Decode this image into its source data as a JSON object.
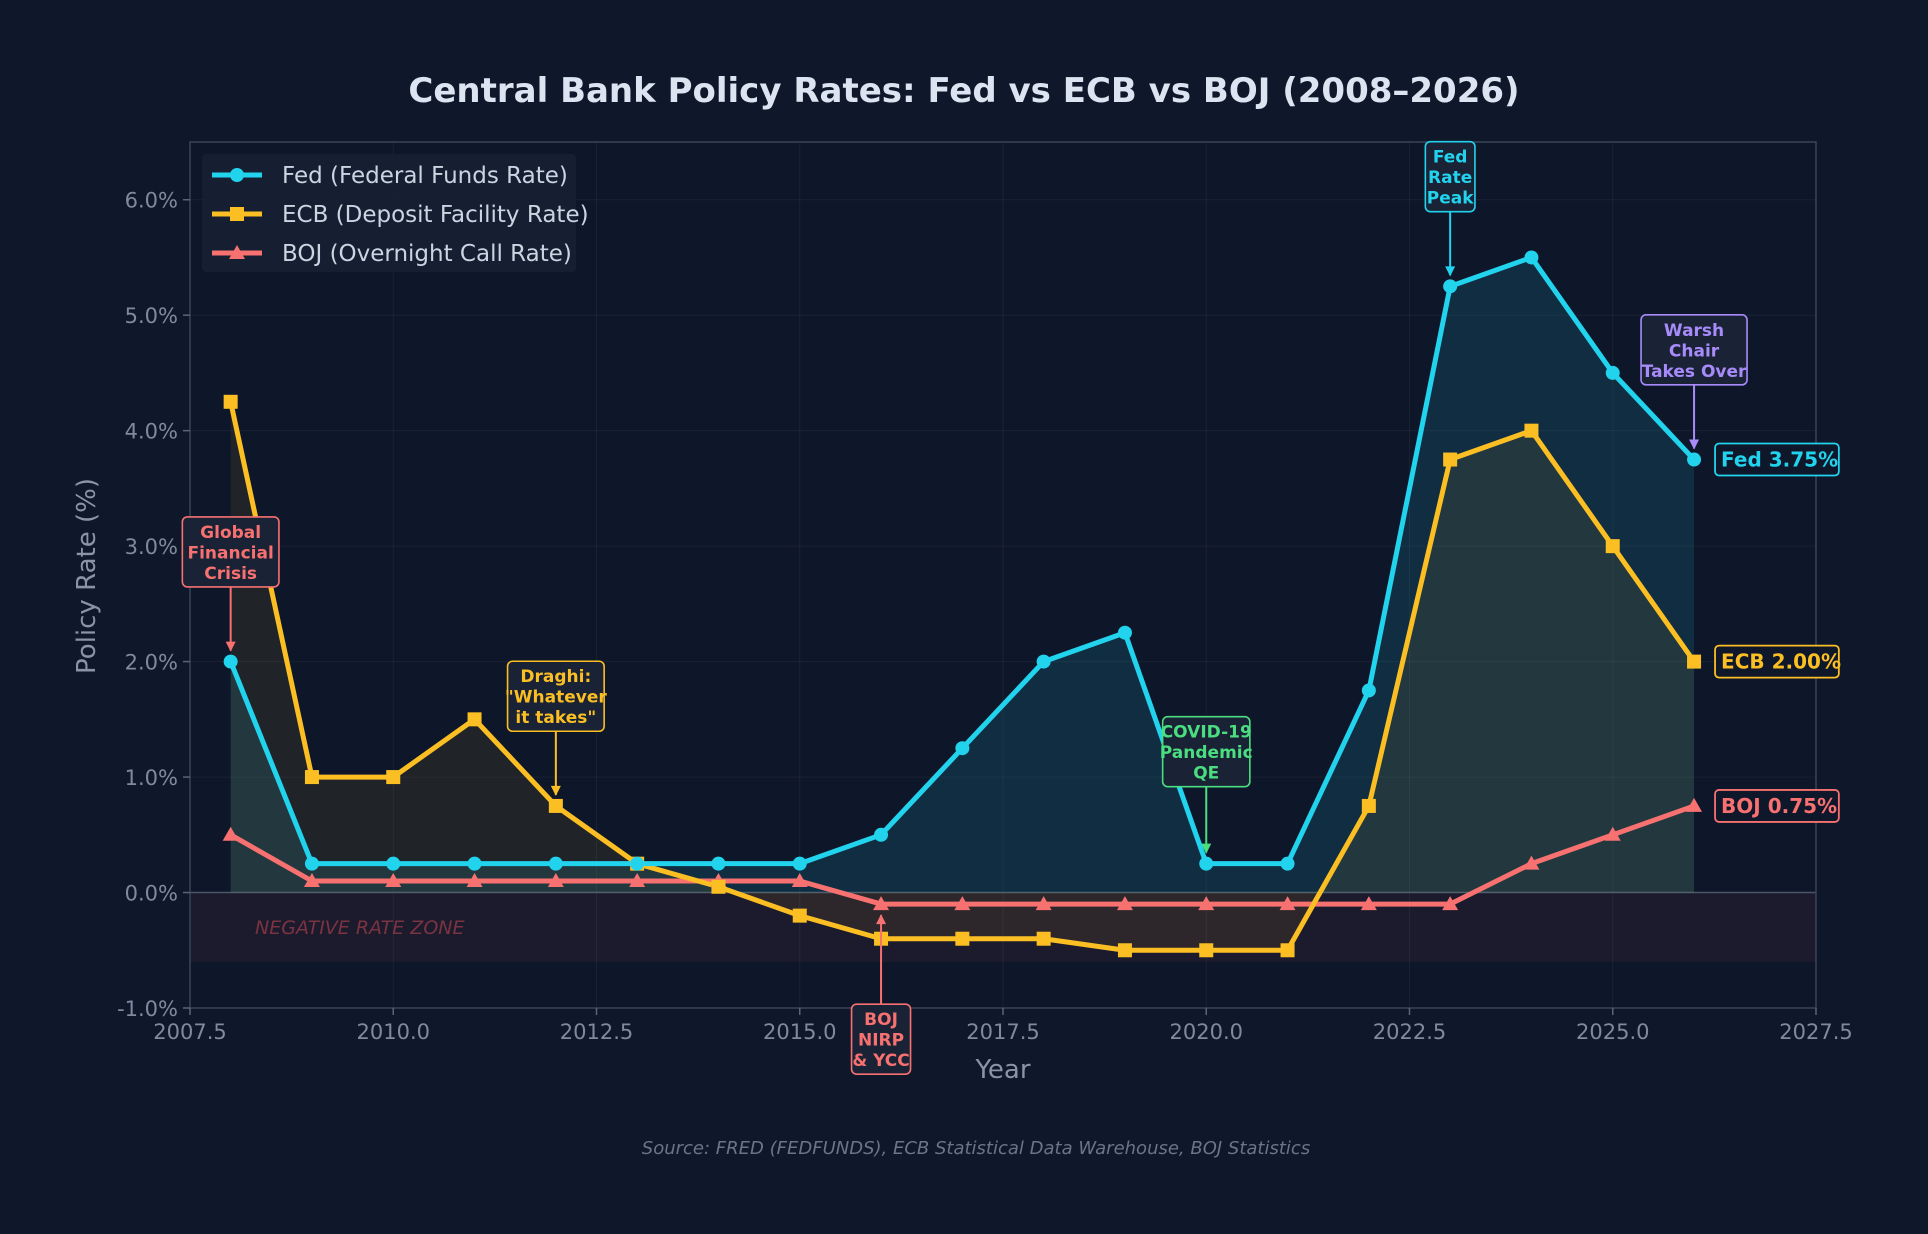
{
  "colors": {
    "background": "#0f172a",
    "fed": "#22d3ee",
    "ecb": "#fbbf24",
    "boj": "#f87171",
    "green": "#4ade80",
    "purple": "#a78bfa",
    "zone": "#f87171"
  },
  "chart_data": {
    "type": "line",
    "title": "Central Bank Policy Rates: Fed vs ECB vs BOJ (2008–2026)",
    "xlabel": "Year",
    "ylabel": "Policy Rate (%)",
    "xlim": [
      2007.5,
      2027.5
    ],
    "ylim": [
      -1.0,
      6.5
    ],
    "x_ticks": [
      2007.5,
      2010.0,
      2012.5,
      2015.0,
      2017.5,
      2020.0,
      2022.5,
      2025.0,
      2027.5
    ],
    "x_tick_labels": [
      "2007.5",
      "2010.0",
      "2012.5",
      "2015.0",
      "2017.5",
      "2020.0",
      "2022.5",
      "2025.0",
      "2027.5"
    ],
    "y_ticks": [
      -1,
      0,
      1,
      2,
      3,
      4,
      5,
      6
    ],
    "y_tick_labels": [
      "-1.0%",
      "0.0%",
      "1.0%",
      "2.0%",
      "3.0%",
      "4.0%",
      "5.0%",
      "6.0%"
    ],
    "grid": true,
    "legend_position": "top-left",
    "x": [
      2008,
      2009,
      2010,
      2011,
      2012,
      2013,
      2014,
      2015,
      2016,
      2017,
      2018,
      2019,
      2020,
      2021,
      2022,
      2023,
      2024,
      2025,
      2026
    ],
    "series": [
      {
        "name": "Fed (Federal Funds Rate)",
        "key": "fed",
        "marker": "circle",
        "values": [
          2.0,
          0.25,
          0.25,
          0.25,
          0.25,
          0.25,
          0.25,
          0.25,
          0.5,
          1.25,
          2.0,
          2.25,
          0.25,
          0.25,
          1.75,
          5.25,
          5.5,
          4.5,
          3.75
        ],
        "end_label": "Fed 3.75%"
      },
      {
        "name": "ECB (Deposit Facility Rate)",
        "key": "ecb",
        "marker": "square",
        "values": [
          4.25,
          1.0,
          1.0,
          1.5,
          0.75,
          0.25,
          0.05,
          -0.2,
          -0.4,
          -0.4,
          -0.4,
          -0.5,
          -0.5,
          -0.5,
          0.75,
          3.75,
          4.0,
          3.0,
          2.0
        ],
        "end_label": "ECB 2.00%"
      },
      {
        "name": "BOJ (Overnight Call Rate)",
        "key": "boj",
        "marker": "triangle",
        "values": [
          0.5,
          0.1,
          0.1,
          0.1,
          0.1,
          0.1,
          0.1,
          0.1,
          -0.1,
          -0.1,
          -0.1,
          -0.1,
          -0.1,
          -0.1,
          -0.1,
          -0.1,
          0.25,
          0.5,
          0.75
        ],
        "end_label": "BOJ 0.75%"
      }
    ],
    "negative_zone": {
      "label": "NEGATIVE RATE ZONE",
      "y_range": [
        -0.6,
        0
      ]
    },
    "annotations": [
      {
        "lines": [
          "Global",
          "Financial",
          "Crisis"
        ],
        "x": 2008,
        "y": 2.0,
        "color_key": "boj",
        "box_x": 2008.0,
        "box_y": 2.95,
        "dir": "down"
      },
      {
        "lines": [
          "Draghi:",
          "\"Whatever",
          "it takes\""
        ],
        "x": 2012,
        "y": 0.75,
        "color_key": "ecb",
        "box_x": 2012.0,
        "box_y": 1.7,
        "dir": "down"
      },
      {
        "lines": [
          "BOJ",
          "NIRP",
          "& YCC"
        ],
        "x": 2016,
        "y": -0.1,
        "color_key": "boj",
        "box_x": 2016.0,
        "box_y": -1.27,
        "dir": "up"
      },
      {
        "lines": [
          "COVID-19",
          "Pandemic",
          "QE"
        ],
        "x": 2020,
        "y": 0.25,
        "color_key": "green",
        "box_x": 2020.0,
        "box_y": 1.22,
        "dir": "down"
      },
      {
        "lines": [
          "Fed",
          "Rate",
          "Peak"
        ],
        "x": 2023,
        "y": 5.25,
        "color_key": "fed",
        "box_x": 2023.0,
        "box_y": 6.2,
        "dir": "down"
      },
      {
        "lines": [
          "Warsh",
          "Chair",
          "Takes Over"
        ],
        "x": 2026,
        "y": 3.75,
        "color_key": "purple",
        "box_x": 2026.0,
        "box_y": 4.7,
        "dir": "down"
      }
    ]
  },
  "source": "Source: FRED (FEDFUNDS), ECB Statistical Data Warehouse, BOJ Statistics"
}
